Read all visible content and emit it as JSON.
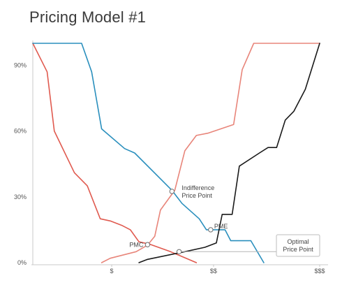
{
  "chart_data": {
    "type": "line",
    "title": "Pricing Model #1",
    "xlabel": "",
    "ylabel": "",
    "ylim": [
      0,
      100
    ],
    "xlim": [
      0,
      100
    ],
    "y_ticks": [
      {
        "value": 0,
        "label": "0%"
      },
      {
        "value": 30,
        "label": "30%"
      },
      {
        "value": 60,
        "label": "60%"
      },
      {
        "value": 90,
        "label": "90%"
      }
    ],
    "x_ticks": [
      {
        "value": 27.5,
        "label": "$"
      },
      {
        "value": 63,
        "label": "$$"
      },
      {
        "value": 100,
        "label": "$$$"
      }
    ],
    "grid": false,
    "series": [
      {
        "color": "#e05a4f",
        "points": [
          [
            0,
            100
          ],
          [
            5,
            87
          ],
          [
            7.5,
            60
          ],
          [
            14.5,
            41
          ],
          [
            19,
            35
          ],
          [
            23.5,
            20
          ],
          [
            27,
            19
          ],
          [
            31,
            17
          ],
          [
            34,
            15
          ],
          [
            37,
            9.5
          ],
          [
            40.5,
            8.5
          ],
          [
            48,
            5
          ],
          [
            57,
            0
          ]
        ]
      },
      {
        "color": "#2a8fbd",
        "points": [
          [
            0,
            100
          ],
          [
            17,
            100
          ],
          [
            20.5,
            87
          ],
          [
            24,
            61
          ],
          [
            32,
            52
          ],
          [
            35.5,
            50
          ],
          [
            48.5,
            33
          ],
          [
            52,
            27
          ],
          [
            58,
            20
          ],
          [
            60.5,
            15
          ],
          [
            67,
            15
          ],
          [
            69,
            10
          ],
          [
            76,
            10
          ],
          [
            80.5,
            0
          ]
        ]
      },
      {
        "color": "#e8857a",
        "points": [
          [
            24,
            0
          ],
          [
            27,
            2
          ],
          [
            36,
            5
          ],
          [
            40,
            8
          ],
          [
            42.5,
            12
          ],
          [
            44.5,
            24
          ],
          [
            49.5,
            33
          ],
          [
            53,
            51
          ],
          [
            57,
            58
          ],
          [
            61,
            59
          ],
          [
            70,
            63
          ],
          [
            73,
            88
          ],
          [
            77,
            100
          ],
          [
            100,
            100
          ]
        ]
      },
      {
        "color": "#1a1a1a",
        "points": [
          [
            37,
            0
          ],
          [
            40,
            1.5
          ],
          [
            53,
            5
          ],
          [
            60,
            7
          ],
          [
            64,
            9
          ],
          [
            66,
            22
          ],
          [
            69.5,
            22
          ],
          [
            72,
            44
          ],
          [
            79,
            50
          ],
          [
            82,
            52.5
          ],
          [
            85,
            52.5
          ],
          [
            88,
            65
          ],
          [
            91,
            69
          ],
          [
            95,
            79
          ],
          [
            100,
            100
          ]
        ]
      }
    ],
    "annotations": [
      {
        "label": "Indifference",
        "label2": "Price Point",
        "x": 48.5,
        "y": 32.5
      },
      {
        "label": "PME",
        "x": 62,
        "y": 15
      },
      {
        "label": "PMC",
        "x": 40,
        "y": 8.2
      },
      {
        "label": "Optimal",
        "label2": "Price Point",
        "x": 51,
        "y": 5,
        "callout": true
      }
    ]
  }
}
